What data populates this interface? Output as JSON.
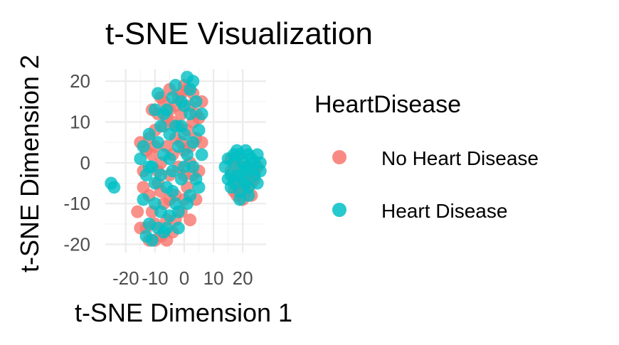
{
  "chart_data": {
    "type": "scatter",
    "title": "t-SNE Visualization",
    "xlabel": "t-SNE Dimension 1",
    "ylabel": "t-SNE Dimension 2",
    "xlim": [
      -27,
      28
    ],
    "ylim": [
      -22,
      23
    ],
    "x_ticks": [
      -20,
      -10,
      0,
      10,
      20
    ],
    "x_tick_labels": [
      "-20",
      "-10",
      "0",
      "10",
      "20"
    ],
    "y_ticks": [
      -20,
      -10,
      0,
      10,
      20
    ],
    "y_tick_labels": [
      "-20",
      "-10",
      "0",
      "10",
      "20"
    ],
    "grid": true,
    "legend": {
      "title": "HeartDisease",
      "position": "right",
      "entries": [
        "No Heart Disease",
        "Heart Disease"
      ]
    },
    "series": [
      {
        "name": "No Heart Disease",
        "color": "#F8766D",
        "points": [
          [
            -15,
            5
          ],
          [
            -14,
            -2
          ],
          [
            -13,
            3
          ],
          [
            -12,
            -8
          ],
          [
            -12,
            6
          ],
          [
            -11,
            -12
          ],
          [
            -11,
            2
          ],
          [
            -10,
            -15
          ],
          [
            -10,
            8
          ],
          [
            -9,
            -5
          ],
          [
            -9,
            12
          ],
          [
            -8,
            -18
          ],
          [
            -8,
            0
          ],
          [
            -7,
            15
          ],
          [
            -7,
            -10
          ],
          [
            -6,
            4
          ],
          [
            -6,
            -14
          ],
          [
            -5,
            18
          ],
          [
            -5,
            -3
          ],
          [
            -4,
            10
          ],
          [
            -4,
            -17
          ],
          [
            -3,
            6
          ],
          [
            -3,
            -8
          ],
          [
            -2,
            16
          ],
          [
            -2,
            -1
          ],
          [
            -1,
            12
          ],
          [
            -1,
            -12
          ],
          [
            0,
            19
          ],
          [
            0,
            3
          ],
          [
            1,
            8
          ],
          [
            1,
            -6
          ],
          [
            2,
            14
          ],
          [
            2,
            0
          ],
          [
            3,
            -3
          ],
          [
            3,
            17
          ],
          [
            4,
            6
          ],
          [
            4,
            -9
          ],
          [
            5,
            11
          ],
          [
            5,
            -2
          ],
          [
            6,
            15
          ],
          [
            -13,
            -16
          ],
          [
            -12,
            -19
          ],
          [
            -8,
            -7
          ],
          [
            -7,
            9
          ],
          [
            -6,
            -19
          ],
          [
            -4,
            2
          ],
          [
            -3,
            -14
          ],
          [
            -1,
            5
          ],
          [
            0,
            -9
          ],
          [
            2,
            -14
          ],
          [
            -16,
            -12
          ],
          [
            -15,
            -16
          ],
          [
            -14,
            -6
          ],
          [
            -10,
            -19
          ],
          [
            -9,
            -2
          ],
          [
            -5,
            13
          ],
          [
            -2,
            9
          ],
          [
            1,
            18
          ],
          [
            3,
            10
          ],
          [
            6,
            5
          ],
          [
            -11,
            13
          ],
          [
            -10,
            4
          ],
          [
            -8,
            16
          ],
          [
            -6,
            11
          ],
          [
            -5,
            -9
          ],
          [
            -3,
            14
          ],
          [
            -1,
            17
          ],
          [
            0,
            -3
          ],
          [
            2,
            4
          ],
          [
            4,
            12
          ],
          [
            16,
            -2
          ],
          [
            17,
            -4
          ],
          [
            18,
            -8
          ],
          [
            19,
            -6
          ],
          [
            21,
            -3
          ],
          [
            22,
            -1
          ],
          [
            24,
            -2
          ],
          [
            17,
            -7
          ],
          [
            20,
            -9
          ],
          [
            23,
            -5
          ],
          [
            18,
            1
          ],
          [
            19,
            -1
          ],
          [
            21,
            -7
          ],
          [
            22,
            -4
          ],
          [
            25,
            -1
          ],
          [
            20,
            -6
          ],
          [
            23,
            -8
          ],
          [
            18,
            -5
          ],
          [
            16,
            1
          ],
          [
            24,
            -4
          ]
        ]
      },
      {
        "name": "Heart Disease",
        "color": "#00BFC4",
        "points": [
          [
            -25,
            -5
          ],
          [
            -24,
            -6
          ],
          [
            -15,
            1
          ],
          [
            -14,
            4
          ],
          [
            -13,
            -3
          ],
          [
            -12,
            -15
          ],
          [
            -12,
            7
          ],
          [
            -11,
            -19
          ],
          [
            -11,
            -1
          ],
          [
            -10,
            13
          ],
          [
            -10,
            -10
          ],
          [
            -9,
            5
          ],
          [
            -9,
            -16
          ],
          [
            -8,
            9
          ],
          [
            -8,
            -12
          ],
          [
            -7,
            2
          ],
          [
            -7,
            -17
          ],
          [
            -6,
            13
          ],
          [
            -6,
            -6
          ],
          [
            -5,
            7
          ],
          [
            -5,
            -13
          ],
          [
            -4,
            16
          ],
          [
            -4,
            -2
          ],
          [
            -3,
            19
          ],
          [
            -3,
            -10
          ],
          [
            -2,
            4
          ],
          [
            -2,
            -16
          ],
          [
            -1,
            9
          ],
          [
            -1,
            -4
          ],
          [
            0,
            14
          ],
          [
            0,
            -1
          ],
          [
            1,
            21
          ],
          [
            1,
            2
          ],
          [
            2,
            -8
          ],
          [
            2,
            12
          ],
          [
            3,
            20
          ],
          [
            3,
            5
          ],
          [
            4,
            -4
          ],
          [
            4,
            15
          ],
          [
            5,
            8
          ],
          [
            5,
            -6
          ],
          [
            6,
            2
          ],
          [
            6,
            12
          ],
          [
            -14,
            -9
          ],
          [
            -13,
            -18
          ],
          [
            -12,
            -1
          ],
          [
            -10,
            -5
          ],
          [
            -9,
            17
          ],
          [
            -8,
            -3
          ],
          [
            -7,
            12
          ],
          [
            -6,
            -16
          ],
          [
            -5,
            1
          ],
          [
            -4,
            -7
          ],
          [
            -3,
            9
          ],
          [
            -2,
            -12
          ],
          [
            -1,
            15
          ],
          [
            0,
            7
          ],
          [
            1,
            -10
          ],
          [
            2,
            18
          ],
          [
            3,
            -1
          ],
          [
            14,
            -1
          ],
          [
            15,
            1
          ],
          [
            15,
            -4
          ],
          [
            16,
            -6
          ],
          [
            17,
            0
          ],
          [
            17,
            2
          ],
          [
            18,
            3
          ],
          [
            18,
            -3
          ],
          [
            19,
            2
          ],
          [
            19,
            -9
          ],
          [
            20,
            0
          ],
          [
            20,
            -4
          ],
          [
            21,
            3
          ],
          [
            21,
            -1
          ],
          [
            22,
            2
          ],
          [
            22,
            -6
          ],
          [
            23,
            -2
          ],
          [
            23,
            1
          ],
          [
            24,
            0
          ],
          [
            24,
            -3
          ],
          [
            25,
            2
          ],
          [
            25,
            -5
          ],
          [
            26,
            0
          ],
          [
            26,
            -2
          ],
          [
            17,
            -5
          ],
          [
            19,
            -7
          ],
          [
            20,
            -2
          ],
          [
            21,
            -5
          ],
          [
            22,
            -8
          ],
          [
            16,
            -3
          ]
        ]
      }
    ]
  }
}
